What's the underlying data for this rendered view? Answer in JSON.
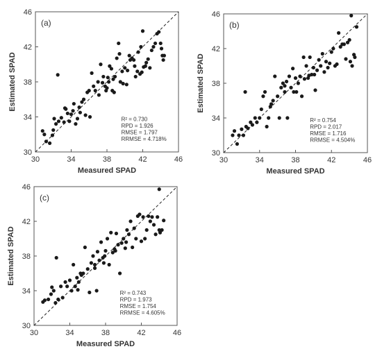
{
  "chart_data": [
    {
      "type": "scatter",
      "panel_label": "(a)",
      "xlabel": "Measured SPAD",
      "ylabel": "Estimated SPAD",
      "xlim": [
        30,
        46
      ],
      "ylim": [
        30,
        46
      ],
      "xticks": [
        "30",
        "34",
        "38",
        "42",
        "46"
      ],
      "yticks": [
        "30",
        "34",
        "38",
        "42",
        "46"
      ],
      "reference_line": "1:1 dashed",
      "stats": [
        "R² = 0.730",
        "RPD = 1.926",
        "RMSE = 1.797",
        "RRMSE = 4.718%"
      ],
      "points": [
        [
          30.8,
          32.4
        ],
        [
          31.0,
          32.0
        ],
        [
          31.2,
          31.2
        ],
        [
          31.6,
          31.0
        ],
        [
          31.9,
          31.9
        ],
        [
          32.0,
          32.5
        ],
        [
          32.1,
          33.8
        ],
        [
          32.3,
          33.2
        ],
        [
          32.5,
          38.8
        ],
        [
          32.6,
          33.5
        ],
        [
          32.9,
          33.9
        ],
        [
          33.2,
          33.4
        ],
        [
          33.3,
          35.0
        ],
        [
          33.4,
          34.9
        ],
        [
          33.6,
          34.4
        ],
        [
          33.8,
          33.5
        ],
        [
          34.0,
          34.3
        ],
        [
          34.2,
          34.7
        ],
        [
          34.3,
          35.5
        ],
        [
          34.5,
          33.2
        ],
        [
          34.7,
          33.8
        ],
        [
          34.9,
          35.1
        ],
        [
          35.0,
          34.5
        ],
        [
          35.2,
          35.7
        ],
        [
          35.4,
          36.0
        ],
        [
          35.6,
          34.2
        ],
        [
          35.8,
          36.8
        ],
        [
          36.0,
          37.0
        ],
        [
          36.1,
          34.0
        ],
        [
          36.3,
          39.0
        ],
        [
          36.5,
          37.5
        ],
        [
          36.7,
          37.0
        ],
        [
          37.0,
          38.0
        ],
        [
          37.1,
          36.5
        ],
        [
          37.3,
          40.0
        ],
        [
          37.5,
          37.9
        ],
        [
          37.6,
          38.6
        ],
        [
          37.8,
          37.5
        ],
        [
          37.9,
          37.0
        ],
        [
          38.0,
          37.3
        ],
        [
          38.1,
          38.5
        ],
        [
          38.2,
          38.0
        ],
        [
          38.3,
          39.8
        ],
        [
          38.5,
          39.5
        ],
        [
          38.6,
          37.0
        ],
        [
          38.7,
          38.3
        ],
        [
          38.8,
          36.8
        ],
        [
          38.9,
          38.6
        ],
        [
          39.1,
          40.7
        ],
        [
          39.3,
          42.4
        ],
        [
          39.4,
          41.2
        ],
        [
          39.5,
          38.0
        ],
        [
          39.7,
          39.2
        ],
        [
          39.8,
          37.8
        ],
        [
          40.0,
          39.6
        ],
        [
          40.2,
          37.7
        ],
        [
          40.3,
          39.3
        ],
        [
          40.5,
          41.0
        ],
        [
          40.6,
          40.5
        ],
        [
          40.8,
          40.7
        ],
        [
          41.0,
          40.5
        ],
        [
          41.1,
          39.8
        ],
        [
          41.2,
          38.6
        ],
        [
          41.4,
          39.2
        ],
        [
          41.5,
          41.4
        ],
        [
          41.7,
          38.9
        ],
        [
          41.8,
          42.0
        ],
        [
          41.9,
          39.1
        ],
        [
          42.0,
          43.8
        ],
        [
          42.1,
          39.7
        ],
        [
          42.3,
          39.8
        ],
        [
          42.4,
          40.2
        ],
        [
          42.6,
          40.6
        ],
        [
          42.8,
          39.6
        ],
        [
          43.0,
          41.6
        ],
        [
          43.2,
          42.0
        ],
        [
          43.4,
          42.4
        ],
        [
          43.6,
          43.5
        ],
        [
          43.8,
          43.7
        ],
        [
          44.0,
          42.4
        ],
        [
          44.1,
          41.8
        ],
        [
          44.2,
          41.0
        ],
        [
          44.3,
          40.5
        ],
        [
          44.4,
          41.0
        ]
      ]
    },
    {
      "type": "scatter",
      "panel_label": "(b)",
      "xlabel": "Measured SPAD",
      "ylabel": "Estimated SPAD",
      "xlim": [
        30,
        46
      ],
      "ylim": [
        30,
        46
      ],
      "xticks": [
        "30",
        "34",
        "38",
        "42",
        "46"
      ],
      "yticks": [
        "30",
        "34",
        "38",
        "42",
        "46"
      ],
      "reference_line": "1:1 dashed",
      "stats": [
        "R² = 0.754",
        "RPD = 2.017",
        "RMSE = 1.716",
        "RRMSE = 4.504%"
      ],
      "points": [
        [
          31.0,
          32.0
        ],
        [
          31.2,
          32.5
        ],
        [
          31.5,
          31.0
        ],
        [
          31.7,
          32.0
        ],
        [
          32.0,
          32.7
        ],
        [
          32.2,
          32.0
        ],
        [
          32.4,
          37.0
        ],
        [
          32.5,
          33.0
        ],
        [
          32.7,
          32.8
        ],
        [
          33.0,
          33.5
        ],
        [
          33.2,
          33.2
        ],
        [
          33.5,
          34.0
        ],
        [
          33.7,
          33.5
        ],
        [
          34.0,
          34.0
        ],
        [
          34.2,
          35.0
        ],
        [
          34.4,
          36.5
        ],
        [
          34.6,
          37.0
        ],
        [
          34.8,
          33.0
        ],
        [
          35.0,
          34.0
        ],
        [
          35.2,
          35.3
        ],
        [
          35.5,
          36.0
        ],
        [
          35.7,
          38.8
        ],
        [
          36.0,
          36.5
        ],
        [
          36.2,
          34.0
        ],
        [
          36.4,
          37.5
        ],
        [
          36.6,
          38.0
        ],
        [
          36.8,
          37.0
        ],
        [
          37.0,
          38.2
        ],
        [
          37.1,
          34.0
        ],
        [
          37.3,
          38.8
        ],
        [
          37.5,
          37.5
        ],
        [
          37.7,
          39.7
        ],
        [
          37.8,
          37.0
        ],
        [
          38.0,
          38.6
        ],
        [
          38.1,
          37.0
        ],
        [
          38.3,
          38.0
        ],
        [
          38.5,
          38.8
        ],
        [
          38.7,
          36.5
        ],
        [
          38.9,
          41.0
        ],
        [
          39.0,
          38.5
        ],
        [
          39.2,
          40.0
        ],
        [
          39.4,
          38.6
        ],
        [
          39.6,
          41.0
        ],
        [
          39.8,
          39.0
        ],
        [
          40.0,
          39.8
        ],
        [
          40.2,
          37.2
        ],
        [
          40.4,
          39.5
        ],
        [
          40.6,
          40.7
        ],
        [
          40.8,
          40.0
        ],
        [
          41.0,
          41.4
        ],
        [
          41.2,
          39.3
        ],
        [
          41.4,
          40.5
        ],
        [
          41.6,
          39.8
        ],
        [
          41.8,
          40.3
        ],
        [
          42.0,
          41.6
        ],
        [
          42.2,
          42.0
        ],
        [
          42.4,
          40.0
        ],
        [
          42.6,
          40.2
        ],
        [
          42.8,
          43.8
        ],
        [
          43.0,
          42.2
        ],
        [
          43.2,
          42.5
        ],
        [
          43.4,
          42.5
        ],
        [
          43.6,
          40.8
        ],
        [
          43.8,
          42.7
        ],
        [
          44.0,
          43.0
        ],
        [
          44.1,
          40.5
        ],
        [
          44.3,
          40.0
        ],
        [
          44.5,
          41.3
        ],
        [
          44.6,
          41.0
        ],
        [
          44.8,
          44.5
        ],
        [
          44.2,
          45.8
        ],
        [
          35.3,
          35.6
        ],
        [
          36.8,
          37.7
        ],
        [
          39.5,
          38.9
        ],
        [
          40.1,
          39.0
        ]
      ]
    },
    {
      "type": "scatter",
      "panel_label": "(c)",
      "xlabel": "Measured SPAD",
      "ylabel": "Estimated SPAD",
      "xlim": [
        30,
        46
      ],
      "ylim": [
        30,
        46
      ],
      "xticks": [
        "30",
        "34",
        "38",
        "42",
        "46"
      ],
      "yticks": [
        "30",
        "34",
        "38",
        "42",
        "46"
      ],
      "reference_line": "1:1 dashed",
      "stats": [
        "R² = 0.743",
        "RPD = 1.973",
        "RMSE = 1.754",
        "RRMSE = 4.605%"
      ],
      "points": [
        [
          31.0,
          32.7
        ],
        [
          31.2,
          32.9
        ],
        [
          31.6,
          33.0
        ],
        [
          31.9,
          33.6
        ],
        [
          32.0,
          34.4
        ],
        [
          32.2,
          34.0
        ],
        [
          32.4,
          32.6
        ],
        [
          32.5,
          37.8
        ],
        [
          32.7,
          33.0
        ],
        [
          33.0,
          34.5
        ],
        [
          33.2,
          33.2
        ],
        [
          33.5,
          35.0
        ],
        [
          33.7,
          34.5
        ],
        [
          34.0,
          35.2
        ],
        [
          34.2,
          34.0
        ],
        [
          34.4,
          37.0
        ],
        [
          34.6,
          34.5
        ],
        [
          34.8,
          35.5
        ],
        [
          35.0,
          35.0
        ],
        [
          35.2,
          36.0
        ],
        [
          35.5,
          36.0
        ],
        [
          35.7,
          39.0
        ],
        [
          36.0,
          36.5
        ],
        [
          36.2,
          33.8
        ],
        [
          36.4,
          37.2
        ],
        [
          36.6,
          38.0
        ],
        [
          36.8,
          37.0
        ],
        [
          37.0,
          34.0
        ],
        [
          37.1,
          38.5
        ],
        [
          37.3,
          37.5
        ],
        [
          37.5,
          39.6
        ],
        [
          37.7,
          37.8
        ],
        [
          37.9,
          38.0
        ],
        [
          38.0,
          38.6
        ],
        [
          38.2,
          40.0
        ],
        [
          38.4,
          37.0
        ],
        [
          38.6,
          40.7
        ],
        [
          38.8,
          38.4
        ],
        [
          39.0,
          38.8
        ],
        [
          39.2,
          40.6
        ],
        [
          39.4,
          39.3
        ],
        [
          39.6,
          36.0
        ],
        [
          39.8,
          39.5
        ],
        [
          40.0,
          40.0
        ],
        [
          40.2,
          38.9
        ],
        [
          40.4,
          41.0
        ],
        [
          40.6,
          40.5
        ],
        [
          40.8,
          42.0
        ],
        [
          41.0,
          39.0
        ],
        [
          41.2,
          41.2
        ],
        [
          41.4,
          40.0
        ],
        [
          41.6,
          42.6
        ],
        [
          41.8,
          42.8
        ],
        [
          42.0,
          39.7
        ],
        [
          42.2,
          42.5
        ],
        [
          42.4,
          40.0
        ],
        [
          42.6,
          41.0
        ],
        [
          42.8,
          42.6
        ],
        [
          43.0,
          42.0
        ],
        [
          43.2,
          42.5
        ],
        [
          43.4,
          41.6
        ],
        [
          43.6,
          40.5
        ],
        [
          43.8,
          42.5
        ],
        [
          44.0,
          41.0
        ],
        [
          44.1,
          40.7
        ],
        [
          44.3,
          41.0
        ],
        [
          44.5,
          42.1
        ],
        [
          44.0,
          45.7
        ],
        [
          35.3,
          35.8
        ],
        [
          36.8,
          36.6
        ],
        [
          39.1,
          38.6
        ],
        [
          40.3,
          39.6
        ],
        [
          37.8,
          37.2
        ],
        [
          34.9,
          34.1
        ]
      ]
    }
  ]
}
